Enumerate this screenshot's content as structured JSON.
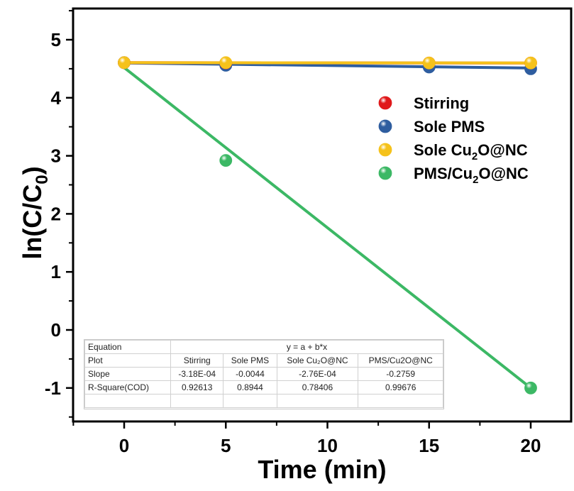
{
  "chart_data": {
    "type": "scatter",
    "title": "",
    "xlabel": "Time (min)",
    "ylabel": "ln(C/C0)",
    "xlim": [
      -2.5,
      22
    ],
    "ylim": [
      -1.6,
      5.5
    ],
    "x_ticks": [
      0,
      5,
      10,
      15,
      20
    ],
    "x_tick_labels": [
      "0",
      "5",
      "10",
      "15",
      "20"
    ],
    "y_ticks": [
      -1,
      0,
      1,
      2,
      3,
      4,
      5
    ],
    "y_tick_labels": [
      "-1",
      "0",
      "1",
      "2",
      "3",
      "4",
      "5"
    ],
    "legend_position": "right",
    "series": [
      {
        "name": "Stirring",
        "color": "#e0191b",
        "x": [
          0,
          5,
          15,
          20
        ],
        "y": [
          4.605,
          4.6,
          4.6,
          4.6
        ],
        "fit": {
          "intercept": 4.605,
          "slope": -0.000318
        }
      },
      {
        "name": "Sole PMS",
        "color": "#2e5d9f",
        "x": [
          0,
          5,
          15,
          20
        ],
        "y": [
          4.605,
          4.56,
          4.53,
          4.5
        ],
        "fit": {
          "intercept": 4.6,
          "slope": -0.0044
        }
      },
      {
        "name": "Sole Cu2O@NC",
        "color": "#f5c21b",
        "x": [
          0,
          5,
          15,
          20
        ],
        "y": [
          4.605,
          4.605,
          4.6,
          4.6
        ],
        "fit": {
          "intercept": 4.605,
          "slope": -0.000276
        }
      },
      {
        "name": "PMS/Cu2O@NC",
        "color": "#3cb865",
        "x": [
          0,
          5,
          20
        ],
        "y": [
          4.605,
          2.92,
          -1.0
        ],
        "fit": {
          "intercept": 4.52,
          "slope": -0.2759
        }
      }
    ],
    "fit_table": {
      "equation_label": "Equation",
      "equation": "y = a + b*x",
      "plot_label": "Plot",
      "slope_label": "Slope",
      "r2_label": "R-Square(COD)",
      "columns": [
        "Stirring",
        "Sole PMS",
        "Sole Cu₂O@NC",
        "PMS/Cu2O@NC"
      ],
      "slopes": [
        "-3.18E-04",
        "-0.0044",
        "-2.76E-04",
        "-0.2759"
      ],
      "r2": [
        "0.92613",
        "0.8944",
        "0.78406",
        "0.99676"
      ]
    }
  }
}
